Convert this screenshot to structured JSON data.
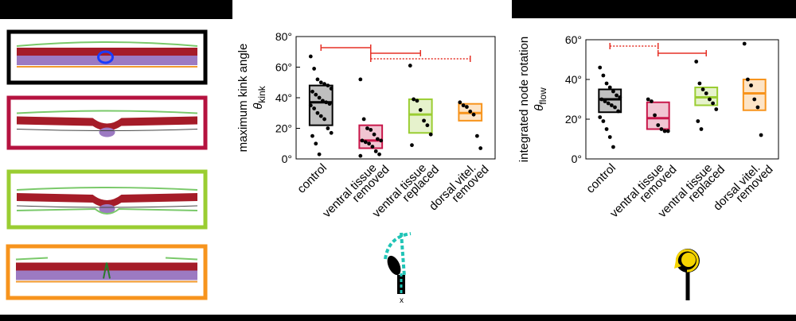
{
  "colors": {
    "control": "#000000",
    "ventral_removed": "#c8174a",
    "ventral_replaced": "#9acd32",
    "dorsal_removed": "#f7941d"
  },
  "schematics": [
    {
      "name": "control-schematic",
      "color": "#000000"
    },
    {
      "name": "ventral-removed-schematic",
      "color": "#b5123f"
    },
    {
      "name": "ventral-replaced-schematic",
      "color": "#9acd32"
    },
    {
      "name": "dorsal-removed-schematic",
      "color": "#f7941d"
    }
  ],
  "icons": [
    "kink-angle-icon",
    "node-rotation-icon"
  ],
  "icon_labels": {
    "x_label": "x"
  },
  "chart_data": [
    {
      "type": "box",
      "ylabel_line1": "maximum kink angle",
      "ylabel_sym": "θ",
      "ylabel_sub": "kink",
      "yticks": [
        "0°",
        "20°",
        "40°",
        "60°",
        "80°"
      ],
      "ylim": [
        0,
        80
      ],
      "categories": [
        "control",
        "ventral tissue removed",
        "ventral tissue replaced",
        "dorsal vitel. removed"
      ],
      "category_lines": [
        [
          "control"
        ],
        [
          "ventral tissue",
          "removed"
        ],
        [
          "ventral tissue",
          "replaced"
        ],
        [
          "dorsal vitel.",
          "removed"
        ]
      ],
      "boxes": [
        {
          "q1": 22,
          "median": 37,
          "q3": 48
        },
        {
          "q1": 7,
          "median": 12,
          "q3": 22
        },
        {
          "q1": 17,
          "median": 29,
          "q3": 39
        },
        {
          "q1": 25,
          "median": 30,
          "q3": 36
        }
      ],
      "points": [
        [
          67,
          59,
          52,
          50,
          49,
          48,
          46,
          44,
          42,
          40,
          38,
          37,
          36,
          35,
          33,
          30,
          28,
          26,
          20,
          17,
          15,
          10,
          3
        ],
        [
          52,
          26,
          20,
          19,
          16,
          13,
          12,
          12,
          11,
          10,
          8,
          5,
          3,
          2
        ],
        [
          61,
          39,
          38,
          32,
          25,
          22,
          16,
          9
        ],
        [
          37,
          35,
          34,
          31,
          29,
          15,
          7
        ]
      ],
      "significance": [
        {
          "from": 0,
          "to": 1,
          "style": "solid"
        },
        {
          "from": 1,
          "to": 2,
          "style": "solid"
        },
        {
          "from": 1,
          "to": 3,
          "style": "dotted"
        }
      ]
    },
    {
      "type": "box",
      "ylabel_line1": "integrated node rotation",
      "ylabel_sym": "θ",
      "ylabel_sub": "flow",
      "yticks": [
        "0°",
        "20°",
        "40°",
        "60°"
      ],
      "ylim": [
        0,
        60
      ],
      "categories": [
        "control",
        "ventral tissue removed",
        "ventral tissue replaced",
        "dorsal vitel. removed"
      ],
      "category_lines": [
        [
          "control"
        ],
        [
          "ventral tissue",
          "removed"
        ],
        [
          "ventral tissue",
          "replaced"
        ],
        [
          "dorsal vitel.",
          "removed"
        ]
      ],
      "boxes": [
        {
          "q1": 23.5,
          "median": 30,
          "q3": 35
        },
        {
          "q1": 15,
          "median": 20.5,
          "q3": 28.5
        },
        {
          "q1": 27,
          "median": 31,
          "q3": 36
        },
        {
          "q1": 24.5,
          "median": 33,
          "q3": 40
        }
      ],
      "points": [
        [
          46,
          42,
          38,
          36,
          34,
          32,
          31,
          30,
          29,
          28,
          27,
          26,
          24,
          21,
          19,
          15,
          11,
          6
        ],
        [
          30,
          29,
          22,
          17,
          15,
          14,
          14
        ],
        [
          49,
          38,
          35,
          33,
          30,
          28,
          25,
          19,
          15
        ],
        [
          58,
          40,
          37,
          30,
          26,
          12
        ]
      ],
      "significance": [
        {
          "from": 0,
          "to": 1,
          "style": "dotted"
        },
        {
          "from": 1,
          "to": 2,
          "style": "solid"
        }
      ]
    }
  ]
}
